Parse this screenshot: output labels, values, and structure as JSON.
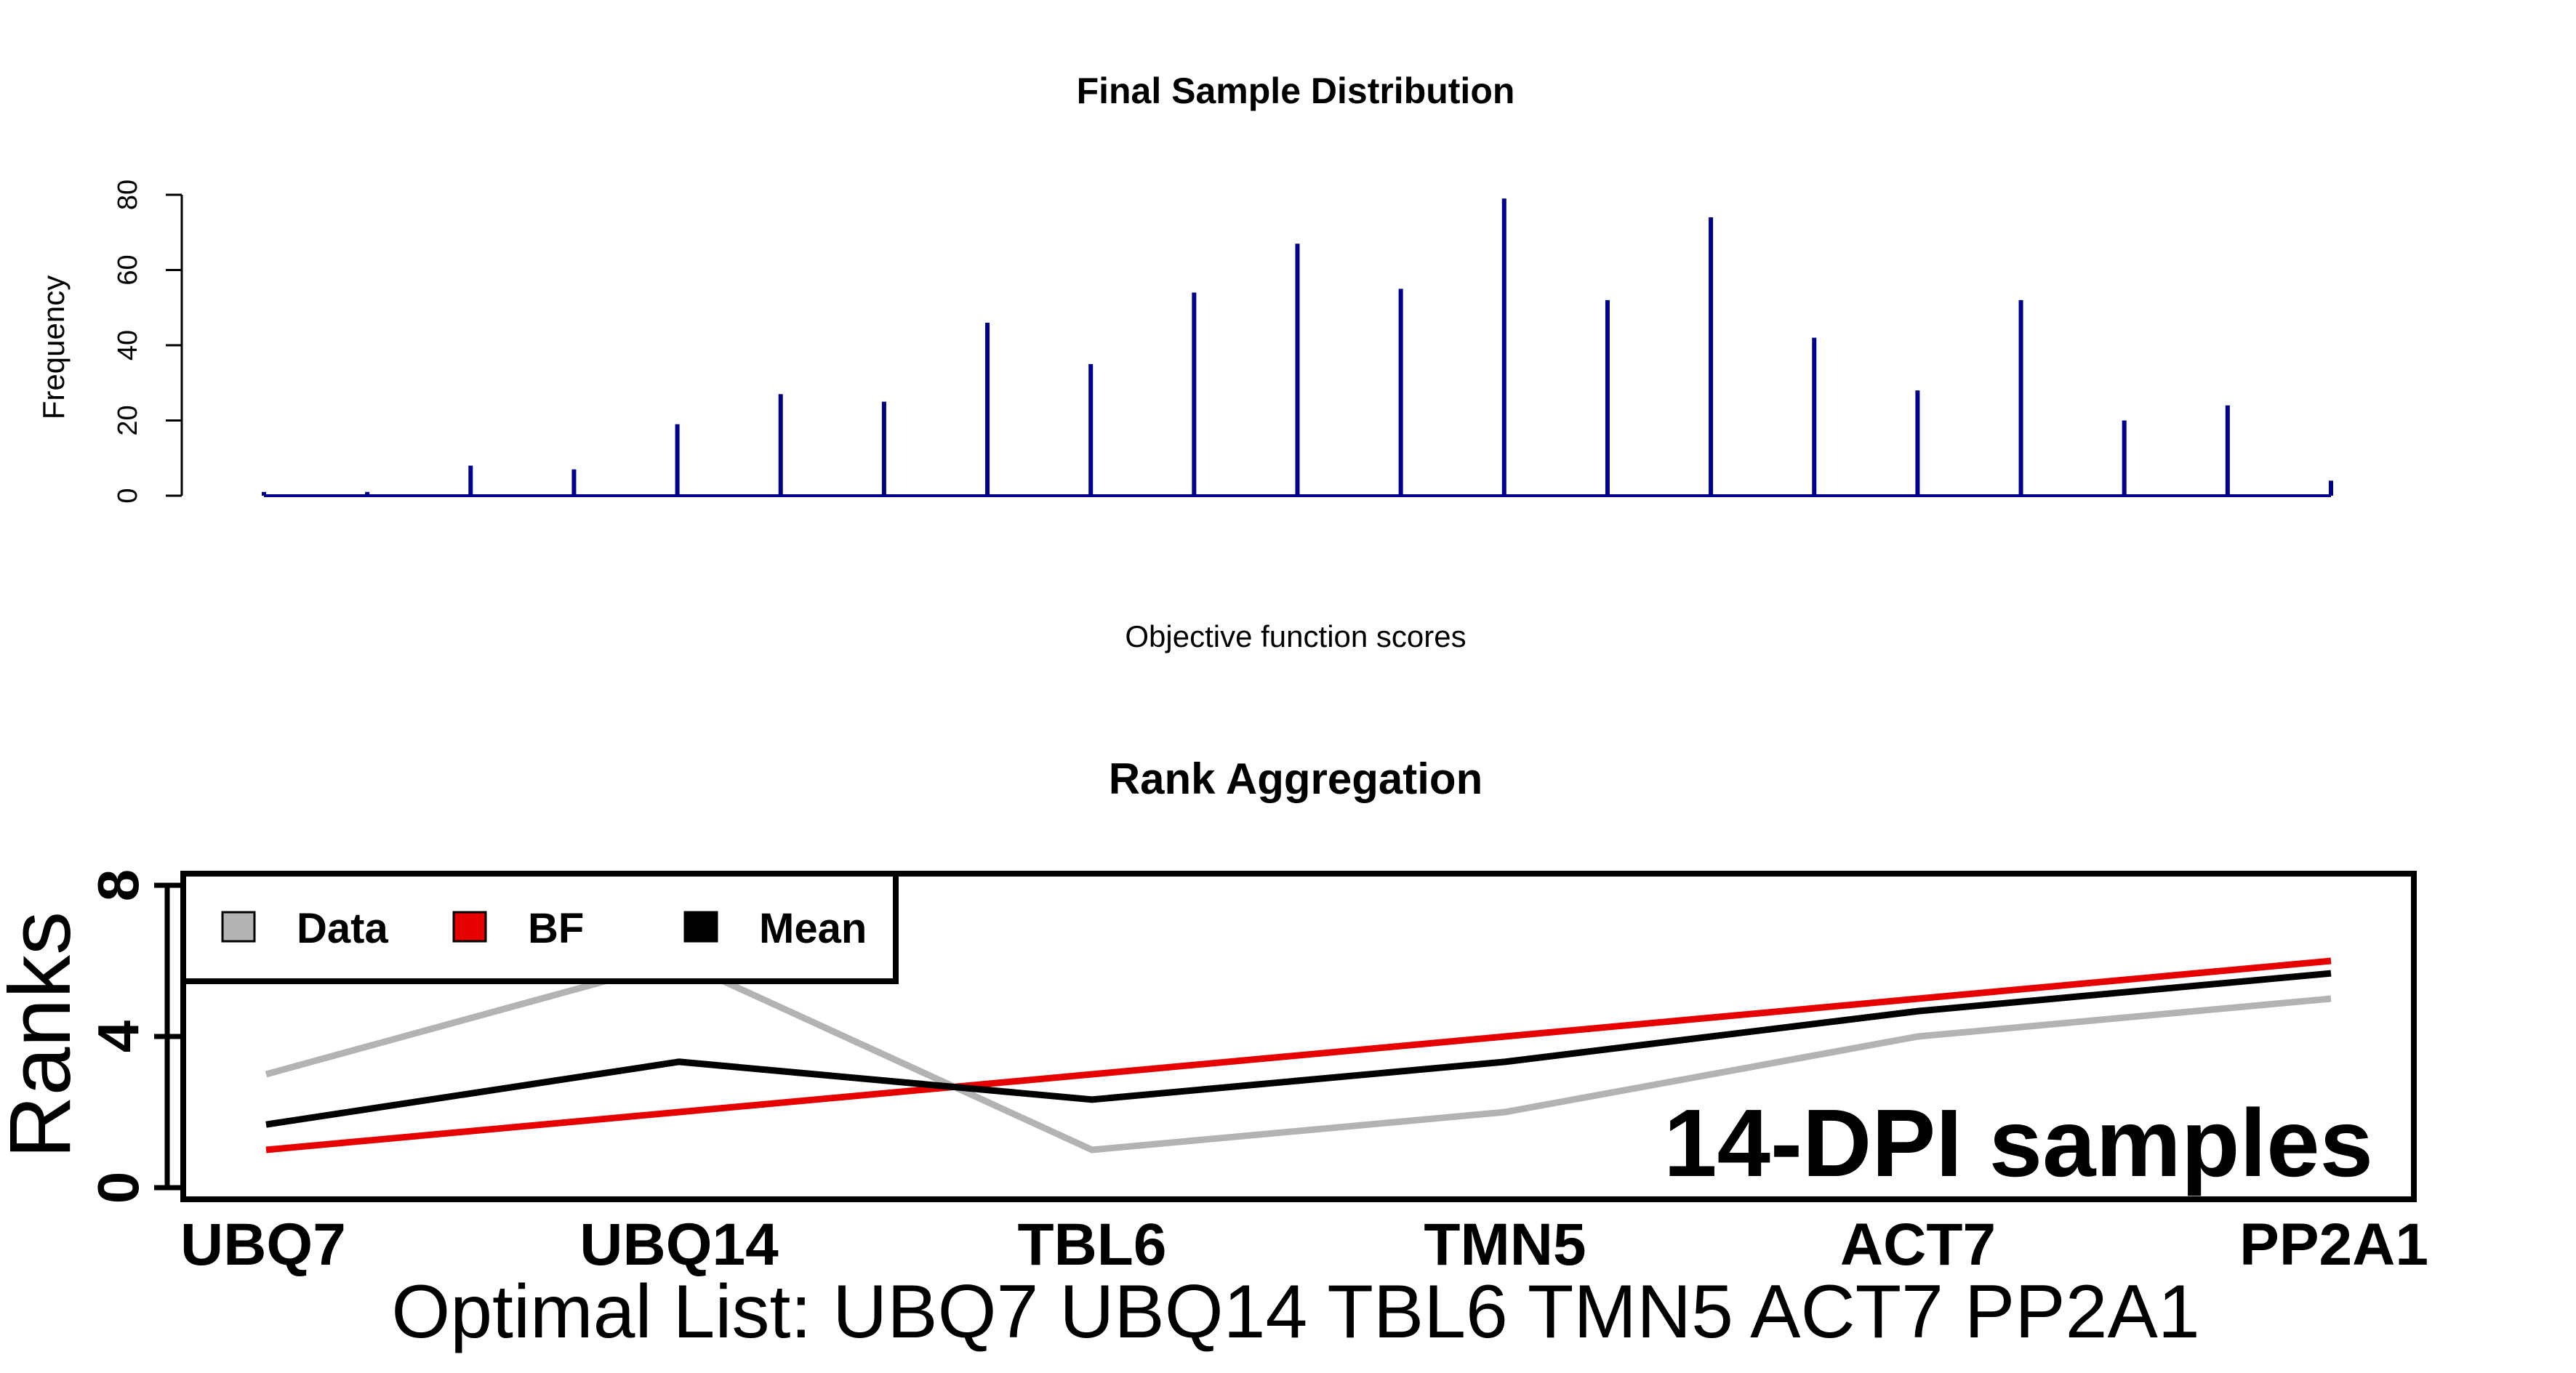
{
  "chart_data": [
    {
      "type": "bar",
      "title": "Final Sample Distribution",
      "xlabel": "Objective function scores",
      "ylabel": "Frequency",
      "ylim": [
        0,
        80
      ],
      "yticks": [
        "0",
        "20",
        "40",
        "60",
        "80"
      ],
      "x_tick_labels_visible": false,
      "values": [
        1,
        1,
        8,
        7,
        19,
        27,
        25,
        46,
        35,
        54,
        67,
        55,
        79,
        52,
        74,
        42,
        28,
        52,
        20,
        24,
        4
      ],
      "color": "#00008B"
    },
    {
      "type": "line",
      "title": "Rank Aggregation",
      "ylabel": "Ranks",
      "ylim": [
        0,
        8
      ],
      "yticks": [
        "0",
        "4",
        "8"
      ],
      "categories": [
        "UBQ7",
        "UBQ14",
        "TBL6",
        "TMN5",
        "ACT7",
        "PP2A1"
      ],
      "series": [
        {
          "name": "Data",
          "color": "#B3B3B3",
          "values": [
            3,
            6,
            1,
            2,
            4,
            5
          ]
        },
        {
          "name": "BF",
          "color": "#E60000",
          "values": [
            1,
            2,
            3,
            4,
            5,
            6
          ]
        },
        {
          "name": "Mean",
          "color": "#000000",
          "values": [
            1.67,
            3.33,
            2.33,
            3.33,
            4.67,
            5.67
          ]
        }
      ],
      "legend_position": "top-left",
      "annotation": "14-DPI samples",
      "footer": "Optimal List: UBQ7 UBQ14 TBL6 TMN5 ACT7 PP2A1"
    }
  ]
}
